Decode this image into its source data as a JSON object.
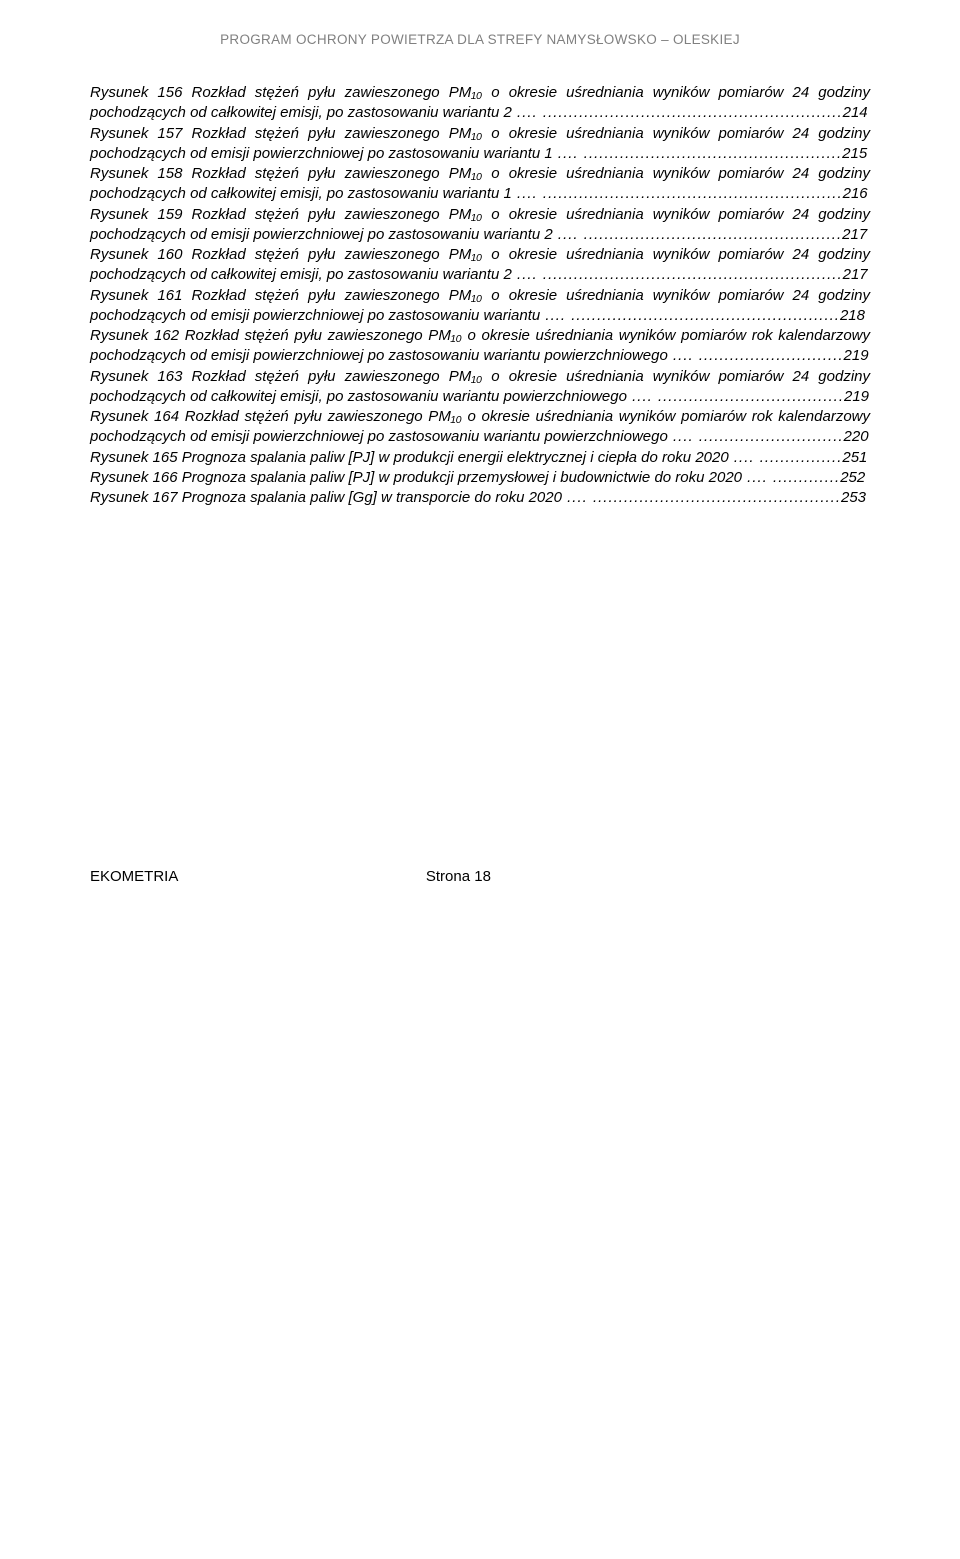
{
  "header": {
    "text": "PROGRAM OCHRONY POWIETRZA DLA STREFY NAMYSŁOWSKO – OLESKIEJ"
  },
  "entries": [
    {
      "text": "Rysunek 156 Rozkład stężeń pyłu zawieszonego PM₁₀ o okresie uśredniania wyników pomiarów 24 godziny pochodzących od całkowitej emisji, po zastosowaniu wariantu 2",
      "page": "214"
    },
    {
      "text": "Rysunek 157 Rozkład stężeń pyłu zawieszonego PM₁₀ o okresie uśredniania wyników pomiarów 24 godziny pochodzących od emisji powierzchniowej po zastosowaniu wariantu 1",
      "page": "215"
    },
    {
      "text": "Rysunek 158 Rozkład stężeń pyłu zawieszonego PM₁₀ o okresie uśredniania wyników pomiarów 24 godziny pochodzących od całkowitej emisji, po zastosowaniu wariantu 1",
      "page": "216"
    },
    {
      "text": "Rysunek 159 Rozkład stężeń pyłu zawieszonego PM₁₀ o okresie uśredniania wyników pomiarów 24 godziny pochodzących od emisji powierzchniowej po zastosowaniu wariantu 2",
      "page": "217"
    },
    {
      "text": "Rysunek 160 Rozkład stężeń pyłu zawieszonego PM₁₀ o okresie uśredniania wyników pomiarów 24 godziny pochodzących od całkowitej emisji, po zastosowaniu wariantu 2",
      "page": "217"
    },
    {
      "text": "Rysunek 161 Rozkład stężeń pyłu zawieszonego PM₁₀ o okresie uśredniania wyników pomiarów 24 godziny pochodzących od emisji powierzchniowej po zastosowaniu wariantu",
      "page": "218"
    },
    {
      "text": "Rysunek 162 Rozkład stężeń pyłu zawieszonego PM₁₀ o okresie uśredniania wyników pomiarów rok kalendarzowy pochodzących od emisji powierzchniowej po zastosowaniu wariantu powierzchniowego",
      "page": "219"
    },
    {
      "text": "Rysunek 163 Rozkład stężeń pyłu zawieszonego PM₁₀ o okresie uśredniania wyników pomiarów 24 godziny pochodzących od całkowitej emisji, po zastosowaniu wariantu powierzchniowego",
      "page": "219"
    },
    {
      "text": "Rysunek 164 Rozkład stężeń pyłu zawieszonego PM₁₀ o okresie uśredniania wyników pomiarów rok kalendarzowy pochodzących od emisji powierzchniowej po zastosowaniu wariantu powierzchniowego",
      "page": "220"
    },
    {
      "text": "Rysunek 165 Prognoza spalania paliw [PJ] w produkcji energii elektrycznej i ciepła do roku 2020",
      "page": "251"
    },
    {
      "text": "Rysunek 166 Prognoza spalania paliw [PJ] w produkcji przemysłowej i budownictwie do roku 2020",
      "page": "252"
    },
    {
      "text": "Rysunek 167 Prognoza spalania paliw [Gg] w transporcie do roku 2020",
      "page": "253"
    }
  ],
  "footer": {
    "left": "EKOMETRIA",
    "right": "Strona 18"
  }
}
